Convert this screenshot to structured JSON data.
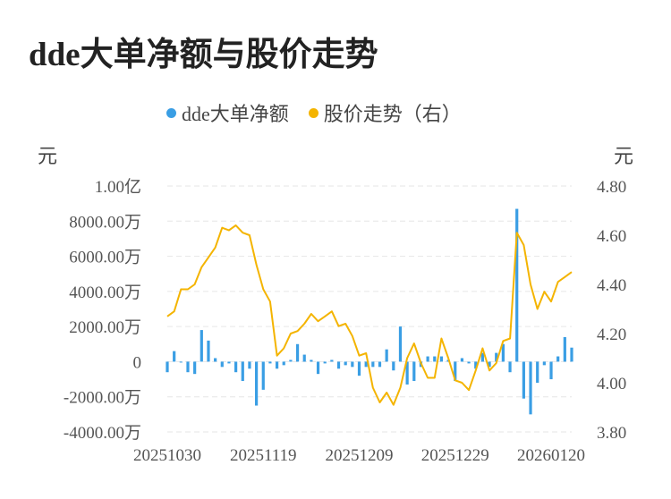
{
  "title": "dde大单净额与股价走势",
  "legend": {
    "series1": "dde大单净额",
    "series2": "股价走势（右）"
  },
  "units": {
    "left": "元",
    "right": "元"
  },
  "colors": {
    "bar": "#3a9ee4",
    "line": "#f4b400",
    "grid": "#e6e6e6"
  },
  "chart_data": {
    "type": "bar+line",
    "x_tick_labels": [
      "20251030",
      "20251119",
      "20251209",
      "20251229",
      "20260120"
    ],
    "x_tick_positions": [
      0,
      14,
      28,
      42,
      56
    ],
    "left_axis": {
      "label": "元",
      "ylim": [
        -4000,
        10000
      ],
      "ticks": [
        10000,
        8000,
        6000,
        4000,
        2000,
        0,
        -2000,
        -4000
      ],
      "tick_labels": [
        "1.00亿",
        "8000.00万",
        "6000.00万",
        "4000.00万",
        "2000.00万",
        "0",
        "-2000.00万",
        "-4000.00万"
      ]
    },
    "right_axis": {
      "label": "元",
      "ylim": [
        3.8,
        4.8
      ],
      "ticks": [
        4.8,
        4.6,
        4.4,
        4.2,
        4.0,
        3.8
      ],
      "tick_labels": [
        "4.80",
        "4.60",
        "4.40",
        "4.20",
        "4.00",
        "3.80"
      ]
    },
    "series": [
      {
        "name": "dde大单净额",
        "type": "bar",
        "axis": "left",
        "values": [
          -600,
          600,
          0,
          -600,
          -700,
          1800,
          1200,
          200,
          -300,
          -100,
          -600,
          -1100,
          -400,
          -2500,
          -1600,
          -100,
          -400,
          -200,
          100,
          1000,
          400,
          100,
          -700,
          -100,
          100,
          -400,
          -200,
          -300,
          -800,
          -300,
          -300,
          -300,
          700,
          -500,
          2000,
          -1300,
          -1100,
          -300,
          300,
          300,
          300,
          100,
          -1100,
          200,
          -100,
          -400,
          500,
          -300,
          500,
          1000,
          -600,
          8700,
          -2100,
          -3000,
          -1200,
          -200,
          -1000,
          300,
          1400,
          800
        ]
      },
      {
        "name": "股价走势（右）",
        "type": "line",
        "axis": "right",
        "values": [
          4.27,
          4.29,
          4.38,
          4.38,
          4.4,
          4.47,
          4.51,
          4.55,
          4.63,
          4.62,
          4.64,
          4.61,
          4.6,
          4.48,
          4.38,
          4.33,
          4.11,
          4.14,
          4.2,
          4.21,
          4.24,
          4.28,
          4.25,
          4.27,
          4.29,
          4.23,
          4.24,
          4.19,
          4.11,
          4.12,
          3.98,
          3.92,
          3.96,
          3.91,
          3.98,
          4.1,
          4.16,
          4.08,
          4.02,
          4.02,
          4.18,
          4.1,
          4.01,
          4.0,
          3.97,
          4.05,
          4.14,
          4.05,
          4.08,
          4.17,
          4.18,
          4.61,
          4.56,
          4.4,
          4.3,
          4.37,
          4.33,
          4.41,
          4.43,
          4.45
        ]
      }
    ],
    "grid": true,
    "legend_position": "top-center"
  }
}
